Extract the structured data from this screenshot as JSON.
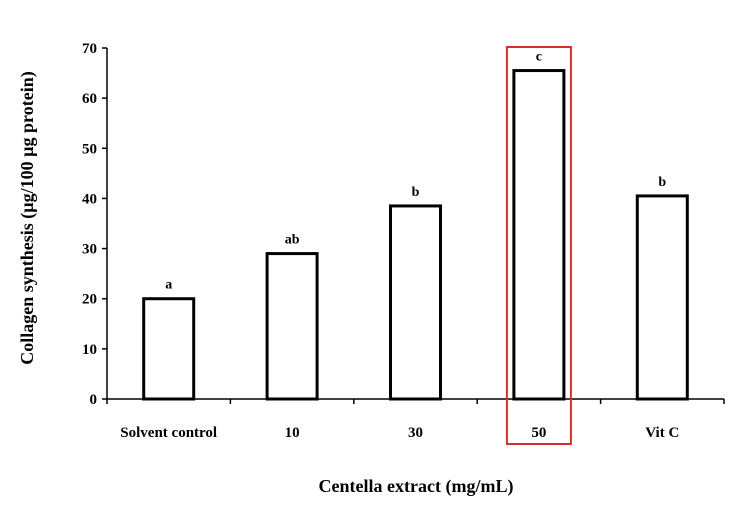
{
  "chart_data": {
    "type": "bar",
    "categories": [
      "Solvent control",
      "10",
      "30",
      "50",
      "Vit C"
    ],
    "values": [
      20,
      29,
      38.5,
      65.5,
      40.5
    ],
    "significance_labels": [
      "a",
      "ab",
      "b",
      "c",
      "b"
    ],
    "highlighted_category": "50",
    "highlight_color": "#d0312d",
    "bar_fill": "#ffffff",
    "bar_stroke": "#000000",
    "xlabel": "Centella extract (mg/mL)",
    "ylabel": "Collagen synthesis (µg/100 µg protein)",
    "ylim": [
      0,
      70
    ],
    "yticks": [
      0,
      10,
      20,
      30,
      40,
      50,
      60,
      70
    ],
    "grid": false,
    "legend": "none"
  }
}
